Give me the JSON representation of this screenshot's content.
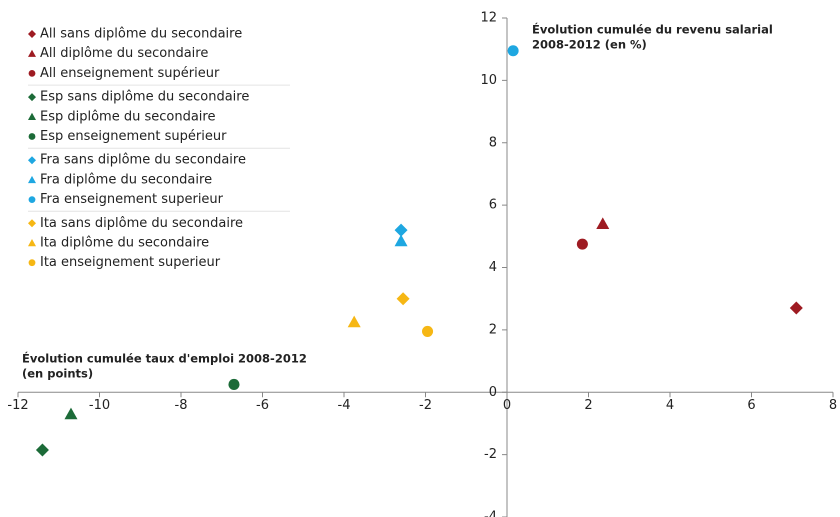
{
  "chart_data": {
    "type": "scatter",
    "y_label": [
      "Évolution cumulée du revenu salarial",
      "2008-2012 (en %)"
    ],
    "x_label": [
      "Évolution cumulée taux d'emploi 2008-2012",
      "(en points)"
    ],
    "xlim": [
      -12,
      8
    ],
    "xticks": [
      -12,
      -10,
      -8,
      -6,
      -4,
      -2,
      0,
      2,
      4,
      6,
      8
    ],
    "ylim": [
      -4,
      12
    ],
    "yticks": [
      -4,
      -2,
      0,
      2,
      4,
      6,
      8,
      10,
      12
    ],
    "legend": "top-left",
    "series": [
      {
        "name": "All sans diplôme du secondaire",
        "color": "#9e1b22",
        "marker": "diamond",
        "x": [
          7.1
        ],
        "y": [
          2.7
        ]
      },
      {
        "name": "All diplôme du secondaire",
        "color": "#9e1b22",
        "marker": "triangle",
        "x": [
          2.35
        ],
        "y": [
          5.4
        ]
      },
      {
        "name": "All enseignement supérieur",
        "color": "#9e1b22",
        "marker": "circle",
        "x": [
          1.85
        ],
        "y": [
          4.75
        ]
      },
      {
        "name": "Esp sans diplôme du secondaire",
        "color": "#1c6b38",
        "marker": "diamond",
        "x": [
          -11.4
        ],
        "y": [
          -1.85
        ]
      },
      {
        "name": "Esp diplôme du secondaire",
        "color": "#1c6b38",
        "marker": "triangle",
        "x": [
          -10.7
        ],
        "y": [
          -0.7
        ]
      },
      {
        "name": "Esp enseignement supérieur",
        "color": "#1c6b38",
        "marker": "circle",
        "x": [
          -6.7
        ],
        "y": [
          0.25
        ]
      },
      {
        "name": "Fra sans diplôme du secondaire",
        "color": "#1ea7e1",
        "marker": "diamond",
        "x": [
          -2.6
        ],
        "y": [
          5.2
        ]
      },
      {
        "name": "Fra diplôme du secondaire",
        "color": "#1ea7e1",
        "marker": "triangle",
        "x": [
          -2.6
        ],
        "y": [
          4.85
        ]
      },
      {
        "name": "Fra enseignement superieur",
        "color": "#1ea7e1",
        "marker": "circle",
        "x": [
          0.15
        ],
        "y": [
          10.95
        ]
      },
      {
        "name": "Ita sans diplôme du secondaire",
        "color": "#f6b714",
        "marker": "diamond",
        "x": [
          -2.55
        ],
        "y": [
          3.0
        ]
      },
      {
        "name": "Ita diplôme du secondaire",
        "color": "#f6b714",
        "marker": "triangle",
        "x": [
          -3.75
        ],
        "y": [
          2.25
        ]
      },
      {
        "name": "Ita enseignement superieur",
        "color": "#f6b714",
        "marker": "circle",
        "x": [
          -1.95
        ],
        "y": [
          1.95
        ]
      }
    ]
  }
}
